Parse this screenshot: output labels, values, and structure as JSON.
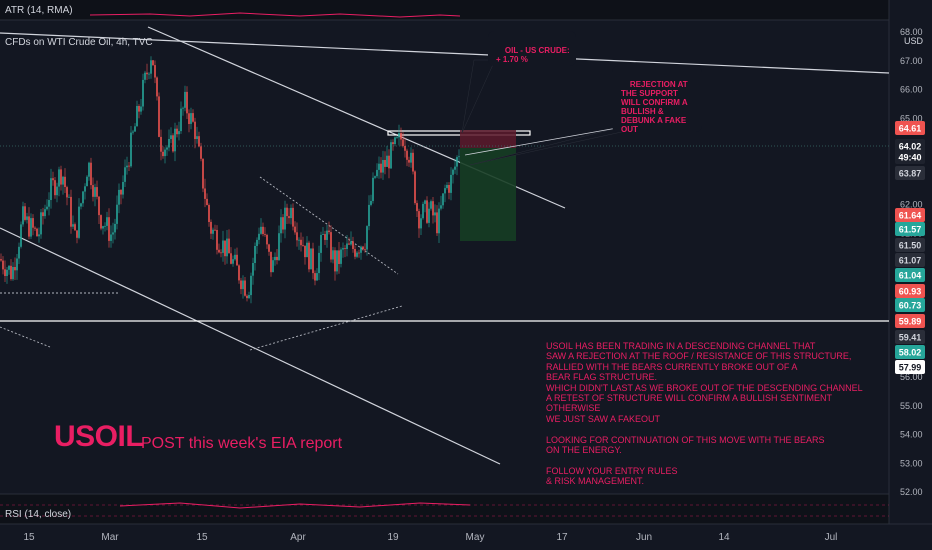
{
  "indicators": {
    "atr": "ATR (14, RMA)",
    "rsi": "RSI (14, close)"
  },
  "symbol_line": "CFDs on WTI Crude Oil, 4h, TVC",
  "currency": "USD",
  "callouts": {
    "oil": "OIL - US CRUDE:\n+ 1.70 %",
    "rejection": "REJECTION AT\nTHE SUPPORT\nWILL CONFIRM A\nBULLISH &\nDEBUNK A FAKE\nOUT"
  },
  "headline": {
    "ticker": "USOIL",
    "subtitle": "POST this week's EIA report"
  },
  "analysis_note": "USOIL HAS BEEN TRADING IN A DESCENDING CHANNEL THAT\nSAW A REJECTION AT THE ROOF / RESISTANCE OF THIS STRUCTURE,\nRALLIED WITH THE BEARS CURRENTLY BROKE OUT OF A\nBEAR FLAG STRUCTURE.\nWHICH DIDN'T LAST AS WE BROKE OUT OF THE DESCENDING CHANNEL\nA RETEST OF STRUCTURE WILL CONFIRM A BULLISH SENTIMENT OTHERWISE\nWE JUST SAW A FAKEOUT\n\nLOOKING FOR CONTINUATION OF THIS MOVE WITH THE BEARS\nON THE ENERGY.\n\nFOLLOW YOUR ENTRY RULES\n& RISK MANAGEMENT.",
  "colors": {
    "background": "#131722",
    "up": "#26a69a",
    "down": "#ef5350",
    "accent": "#e91e63",
    "line": "#d1d4dc",
    "stop_zone": "#5d1a2c",
    "target_zone": "#163d24"
  },
  "chart_data": {
    "type": "candlestick",
    "title": "CFDs on WTI Crude Oil, 4h, TVC",
    "ylim": [
      52,
      68
    ],
    "y_ticks": [
      "68.00",
      "67.00",
      "66.00",
      "65.00",
      "64.00",
      "63.00",
      "62.00",
      "61.00",
      "60.00",
      "59.00",
      "58.00",
      "57.00",
      "56.00",
      "55.00",
      "54.00",
      "53.00",
      "52.00"
    ],
    "x_ticks": [
      "15",
      "Mar",
      "15",
      "Apr",
      "19",
      "May",
      "17",
      "Jun",
      "14",
      "Jul"
    ],
    "price_labels": [
      {
        "text": "64.61",
        "kind": "red"
      },
      {
        "text": "64.02",
        "kind": "current"
      },
      {
        "text": "49:40",
        "kind": "countdown"
      },
      {
        "text": "63.87",
        "kind": "dark"
      },
      {
        "text": "61.64",
        "kind": "red"
      },
      {
        "text": "61.57",
        "kind": "green"
      },
      {
        "text": "61.50",
        "kind": "dark"
      },
      {
        "text": "61.07",
        "kind": "dark"
      },
      {
        "text": "61.04",
        "kind": "green"
      },
      {
        "text": "60.93",
        "kind": "red"
      },
      {
        "text": "60.73",
        "kind": "green"
      },
      {
        "text": "59.89",
        "kind": "red"
      },
      {
        "text": "59.41",
        "kind": "dark"
      },
      {
        "text": "58.02",
        "kind": "green"
      },
      {
        "text": "57.99",
        "kind": "white"
      }
    ],
    "price_path": [
      {
        "x": "Feb 5",
        "y": 60.1
      },
      {
        "x": "Feb 9",
        "y": 59.6
      },
      {
        "x": "Feb 12",
        "y": 61.5
      },
      {
        "x": "Feb 15",
        "y": 60.9
      },
      {
        "x": "Feb 17",
        "y": 62.3
      },
      {
        "x": "Feb 20",
        "y": 63.2
      },
      {
        "x": "Feb 23",
        "y": 60.8
      },
      {
        "x": "Feb 26",
        "y": 63.5
      },
      {
        "x": "Mar 1",
        "y": 61.6
      },
      {
        "x": "Mar 3",
        "y": 60.9
      },
      {
        "x": "Mar 5",
        "y": 63.9
      },
      {
        "x": "Mar 8",
        "y": 67.4
      },
      {
        "x": "Mar 10",
        "y": 64.2
      },
      {
        "x": "Mar 12",
        "y": 63.9
      },
      {
        "x": "Mar 14",
        "y": 65.5
      },
      {
        "x": "Mar 16",
        "y": 64.6
      },
      {
        "x": "Mar 18",
        "y": 61.2
      },
      {
        "x": "Mar 20",
        "y": 60.5
      },
      {
        "x": "Mar 22",
        "y": 59.0
      },
      {
        "x": "Mar 24",
        "y": 61.4
      },
      {
        "x": "Mar 26",
        "y": 59.7
      },
      {
        "x": "Mar 28",
        "y": 61.3
      },
      {
        "x": "Mar 30",
        "y": 61.9
      },
      {
        "x": "Apr 1",
        "y": 60.9
      },
      {
        "x": "Apr 3",
        "y": 59.7
      },
      {
        "x": "Apr 5",
        "y": 61.1
      },
      {
        "x": "Apr 7",
        "y": 59.9
      },
      {
        "x": "Apr 9",
        "y": 60.4
      },
      {
        "x": "Apr 11",
        "y": 60.5
      },
      {
        "x": "Apr 13",
        "y": 60.8
      },
      {
        "x": "Apr 15",
        "y": 63.0
      },
      {
        "x": "Apr 17",
        "y": 63.4
      },
      {
        "x": "Apr 19",
        "y": 64.4
      },
      {
        "x": "Apr 20",
        "y": 63.7
      },
      {
        "x": "Apr 22",
        "y": 61.6
      },
      {
        "x": "Apr 24",
        "y": 61.8
      },
      {
        "x": "Apr 26",
        "y": 61.3
      },
      {
        "x": "Apr 27",
        "y": 62.5
      },
      {
        "x": "Apr 28",
        "y": 62.9
      },
      {
        "x": "Apr 29",
        "y": 64.0
      }
    ],
    "support_level": 59.89,
    "trade_box": {
      "entry": 64.02,
      "stop": 64.61,
      "target": 61.64
    },
    "grid": false,
    "legend": "none"
  }
}
